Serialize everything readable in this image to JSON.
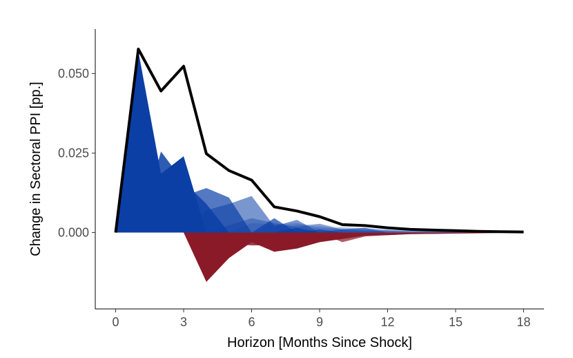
{
  "chart_data": {
    "type": "area",
    "xlabel": "Horizon [Months Since Shock]",
    "ylabel": "Change in Sectoral PPI [pp.]",
    "xlim": [
      -0.9,
      18.9
    ],
    "ylim": [
      -0.024,
      0.064
    ],
    "xticks": [
      0,
      3,
      6,
      9,
      12,
      15,
      18
    ],
    "xtick_labels": [
      "0",
      "3",
      "6",
      "9",
      "12",
      "15",
      "18"
    ],
    "yticks": [
      0.0,
      0.025,
      0.05
    ],
    "ytick_labels": [
      "0.000",
      "0.025",
      "0.050"
    ],
    "grid": false,
    "legend": "none",
    "colors": {
      "positive": "#0b3fa6",
      "negative": "#8b1a28",
      "total": "#000000"
    },
    "x": [
      0,
      1,
      2,
      3,
      4,
      5,
      6,
      7,
      8,
      9,
      10,
      11,
      12,
      13,
      14,
      15,
      16,
      17,
      18
    ],
    "total": [
      0.0,
      0.0577,
      0.0445,
      0.0523,
      0.0248,
      0.0195,
      0.0165,
      0.0081,
      0.0068,
      0.005,
      0.0025,
      0.0022,
      0.0015,
      0.001,
      0.0008,
      0.0006,
      0.0004,
      0.0003,
      0.0002
    ],
    "series": [
      {
        "values": [
          0.0,
          0.057,
          0.0185,
          0.024,
          -0.0155,
          -0.008,
          -0.003,
          -0.006,
          -0.005,
          -0.003,
          -0.002,
          -0.001,
          -0.0008,
          -0.0005,
          -0.0004,
          -0.0003,
          -0.0002,
          -0.0001,
          -0.0001
        ]
      },
      {
        "values": [
          0.0,
          0.0,
          0.0255,
          0.016,
          0.009,
          -0.0035,
          -0.004,
          -0.004,
          0.0015,
          -0.002,
          -0.0015,
          -0.0008,
          -0.0006,
          -0.0004,
          -0.0003,
          -0.0002,
          -0.0001,
          -0.0001,
          -0.0001
        ]
      },
      {
        "values": [
          0.0,
          0.0,
          0.0,
          0.0115,
          0.014,
          0.011,
          0.0,
          0.0045,
          -0.002,
          0.001,
          -0.003,
          -0.0012,
          -0.0008,
          -0.0005,
          -0.0004,
          -0.0003,
          -0.0002,
          -0.0001,
          -0.0001
        ]
      },
      {
        "values": [
          0.0,
          0.0,
          0.0,
          0.0,
          0.007,
          0.009,
          0.0115,
          0.002,
          0.004,
          -0.0015,
          0.001,
          0.0015,
          -0.0005,
          -0.0003,
          -0.0002,
          -0.0002,
          -0.0001,
          -0.0001,
          0.0
        ]
      },
      {
        "values": [
          0.0,
          0.0,
          0.0,
          0.0,
          0.0,
          0.0023,
          0.0045,
          0.003,
          0.0018,
          0.0028,
          0.0009,
          0.0005,
          0.0006,
          0.0003,
          0.0003,
          0.0002,
          0.0002,
          0.0001,
          0.0001
        ]
      },
      {
        "values": [
          0.0,
          0.0,
          0.0,
          0.0,
          0.0,
          0.0,
          0.003,
          0.0025,
          0.003,
          0.0015,
          0.0012,
          0.0008,
          0.0007,
          0.0005,
          0.0004,
          0.0003,
          0.0002,
          0.0002,
          0.0001
        ]
      },
      {
        "values": [
          0.0,
          0.0,
          0.0,
          0.0,
          0.0,
          0.0,
          0.0,
          0.002,
          0.0025,
          0.0022,
          0.001,
          0.0015,
          0.0008,
          0.0006,
          0.0005,
          0.0004,
          0.0003,
          0.0002,
          0.0002
        ]
      },
      {
        "values": [
          0.0,
          0.0,
          0.0,
          0.0,
          0.0,
          0.0,
          0.0,
          0.0,
          0.0025,
          0.0028,
          0.0015,
          0.0012,
          0.0008,
          0.0005,
          0.0004,
          0.0004,
          0.0002,
          0.0002,
          0.0002
        ]
      },
      {
        "values": [
          0.0,
          0.0,
          0.0,
          0.0,
          0.0,
          0.0,
          0.0,
          0.0,
          0.0,
          0.002,
          0.0015,
          0.0012,
          0.0009,
          0.0006,
          0.0005,
          0.0004,
          0.0003,
          0.0002,
          0.0001
        ]
      },
      {
        "values": [
          0.0,
          0.0,
          0.0,
          0.0,
          0.0,
          0.0,
          0.0,
          0.0,
          0.0,
          0.0,
          0.002,
          0.0015,
          0.001,
          0.0008,
          0.0006,
          0.0005,
          0.0004,
          0.0003,
          0.0002
        ]
      }
    ]
  }
}
